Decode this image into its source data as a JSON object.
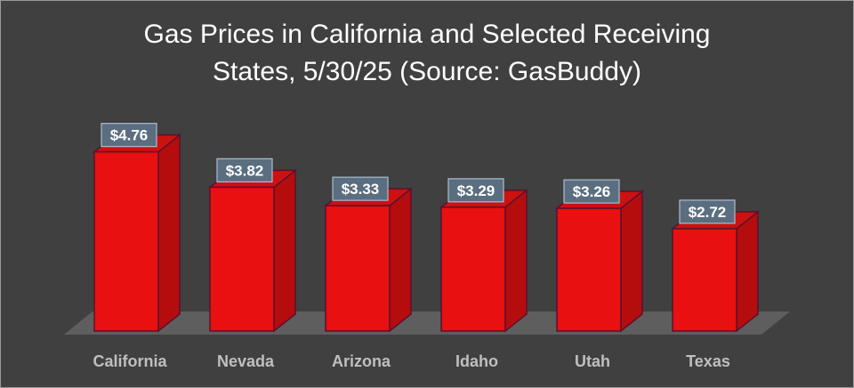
{
  "chart_data": {
    "type": "bar",
    "title_line1": "Gas Prices in California and Selected Receiving",
    "title_line2": "States, 5/30/25 (Source: GasBuddy)",
    "categories": [
      "California",
      "Nevada",
      "Arizona",
      "Idaho",
      "Utah",
      "Texas"
    ],
    "values": [
      4.76,
      3.82,
      3.33,
      3.29,
      3.26,
      2.72
    ],
    "value_labels": [
      "$4.76",
      "$3.82",
      "$3.33",
      "$3.29",
      "$3.26",
      "$2.72"
    ],
    "ylim": [
      0,
      5
    ],
    "grid": false,
    "legend": "none",
    "colors": {
      "background": "#404040",
      "bar_front": "#e81010",
      "bar_side": "#b50d0d",
      "bar_top": "#cc1111",
      "bar_edge": "#5a1030",
      "floor": "#5e5e5e",
      "label_box": "#5b6e80",
      "label_border": "#a9bdd0",
      "category_text": "#bfbfbf",
      "title_text": "#ffffff"
    }
  }
}
